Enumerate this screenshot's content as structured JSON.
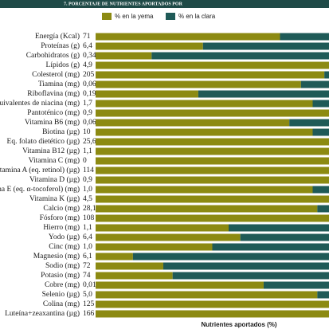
{
  "chart_data": {
    "type": "stacked-barh",
    "title": "7. PORCENTAJE DE NUTRIENTES APORTADOS POR",
    "x_label": "Nutrientes aportados (%)",
    "categories": [
      "Energía (Kcal)",
      "Proteínas (g)",
      "Carbohidratos (g)",
      "Lípidos (g)",
      "Colesterol (mg)",
      "Tiamina (mg)",
      "Riboflavina (mg)",
      "Equivalentes de niacina (mg)",
      "Pantoténico (mg)",
      "Vitamina B6 (mg)",
      "Biotina (µg)",
      "Eq. folato dietético (µg)",
      "Vitamina B12 (µg)",
      "Vitamina C (mg)",
      "Vitamina A (eq. retinol) (µg)",
      "Vitamina D (µg)",
      "Vitamina E (eq. α-tocoferol) (mg)",
      "Vitamina K (µg)",
      "Calcio (mg)",
      "Fósforo (mg)",
      "Hierro (mg)",
      "Yodo (µg)",
      "Cinc (mg)",
      "Magnesio (mg)",
      "Sodio (mg)",
      "Potasio (mg)",
      "Cobre (mg)",
      "Selenio (µg)",
      "Colina (mg)",
      "Luteína+zeaxantina (µg)"
    ],
    "amounts": [
      "71",
      "6,4",
      "0,34",
      "4,9",
      "205",
      "0,06",
      "0,19",
      "1,7",
      "0,9",
      "0,06",
      "10",
      "25,6",
      "1,1",
      "0",
      "114",
      "0,9",
      "1,0",
      "4,5",
      "28,1",
      "108",
      "1,1",
      "6,4",
      "1,0",
      "6,1",
      "72",
      "74",
      "0,01",
      "5,0",
      "125",
      "166"
    ],
    "xlim": [
      0,
      100
    ],
    "series": [
      {
        "name": "% en la yema",
        "color": "#8c8a12",
        "values": [
          79,
          46,
          24,
          100,
          98,
          88,
          44,
          93,
          100,
          83,
          93,
          100,
          100,
          100,
          100,
          100,
          93,
          100,
          95,
          100,
          57,
          62,
          50,
          16,
          29,
          33,
          72,
          95,
          100,
          100
        ]
      },
      {
        "name": "% en la clara",
        "color": "#1f5a57",
        "values": [
          21,
          54,
          76,
          0,
          2,
          12,
          56,
          7,
          0,
          17,
          7,
          0,
          0,
          0,
          0,
          0,
          7,
          0,
          5,
          0,
          43,
          38,
          50,
          84,
          71,
          67,
          28,
          5,
          0,
          0
        ]
      }
    ]
  }
}
